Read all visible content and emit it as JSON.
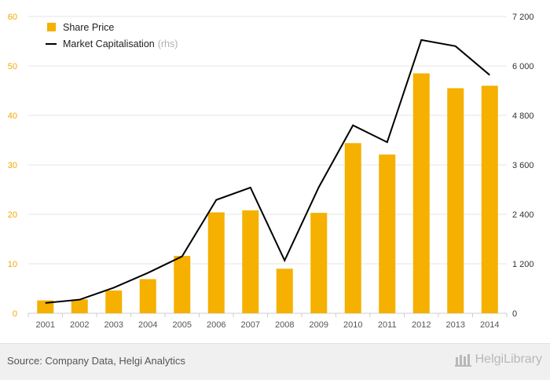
{
  "chart_data": {
    "type": "bar",
    "categories": [
      "2001",
      "2002",
      "2003",
      "2004",
      "2005",
      "2006",
      "2007",
      "2008",
      "2009",
      "2010",
      "2011",
      "2012",
      "2013",
      "2014"
    ],
    "series": [
      {
        "name": "Share Price",
        "type": "bar",
        "axis": "left",
        "color": "#f5b000",
        "values": [
          2.6,
          2.8,
          4.6,
          6.9,
          11.6,
          20.4,
          20.8,
          9.0,
          20.3,
          34.4,
          32.1,
          48.5,
          45.5,
          46.0
        ]
      },
      {
        "name": "Market Capitalisation",
        "name_suffix": "(rhs)",
        "type": "line",
        "axis": "right",
        "color": "#000000",
        "values": [
          250,
          330,
          620,
          980,
          1380,
          2750,
          3050,
          1280,
          3060,
          4560,
          4150,
          6630,
          6480,
          5780
        ]
      }
    ],
    "left_axis": {
      "min": 0,
      "max": 60,
      "ticks": [
        "0",
        "10",
        "20",
        "30",
        "40",
        "50",
        "60"
      ],
      "tick_values": [
        0,
        10,
        20,
        30,
        40,
        50,
        60
      ]
    },
    "right_axis": {
      "min": 0,
      "max": 7200,
      "ticks": [
        "0",
        "1 200",
        "2 400",
        "3 600",
        "4 800",
        "6 000",
        "7 200"
      ],
      "tick_values": [
        0,
        1200,
        2400,
        3600,
        4800,
        6000,
        7200
      ]
    },
    "grid": true,
    "legend_position": "top-left"
  },
  "footer": {
    "source": "Source: Company Data, Helgi Analytics",
    "logo_text": "HelgiLibrary"
  }
}
